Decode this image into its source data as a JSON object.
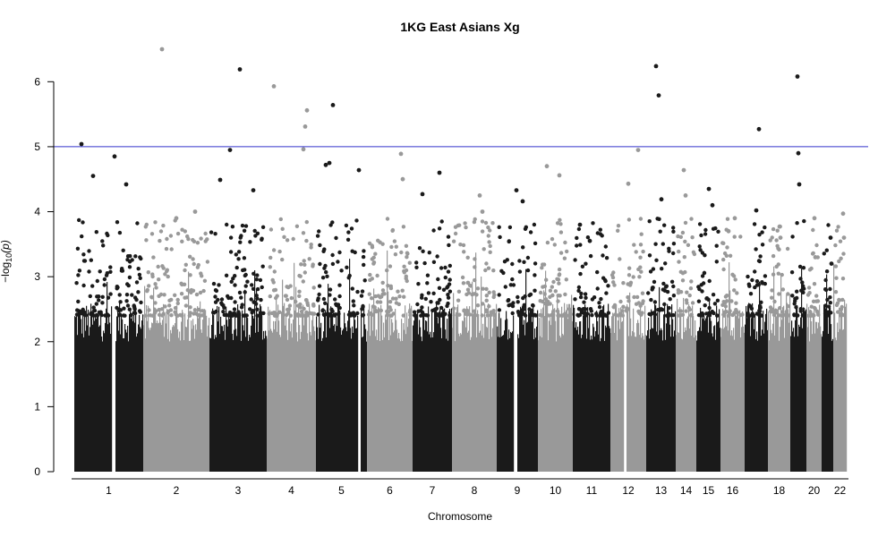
{
  "chart_data": {
    "type": "scatter",
    "subtype": "manhattan",
    "title": "1KG East Asians Xg",
    "xlabel": "Chromosome",
    "ylabel": "−log10(p)",
    "ylabel_main": "−log",
    "ylabel_sub": "10",
    "ylabel_tail": "(p)",
    "ylim": [
      0,
      6.5
    ],
    "yticks": [
      0,
      1,
      2,
      3,
      4,
      5,
      6
    ],
    "threshold": 5,
    "colors": {
      "odd": "#1a1a1a",
      "even": "#999999",
      "threshold": "#3333cc"
    },
    "grid": false,
    "legend": "none",
    "chromosomes": [
      {
        "name": "1",
        "label": "1",
        "top_peaks": [
          5.04,
          4.85,
          4.55,
          4.42
        ]
      },
      {
        "name": "2",
        "label": "2",
        "top_peaks": [
          6.5,
          4.0,
          3.9
        ]
      },
      {
        "name": "3",
        "label": "3",
        "top_peaks": [
          6.19,
          4.95,
          4.49,
          4.33
        ]
      },
      {
        "name": "4",
        "label": "4",
        "top_peaks": [
          5.93,
          5.56,
          5.31,
          4.96
        ]
      },
      {
        "name": "5",
        "label": "5",
        "top_peaks": [
          5.64,
          4.75,
          4.72,
          4.64
        ]
      },
      {
        "name": "6",
        "label": "6",
        "top_peaks": [
          4.89,
          4.5
        ]
      },
      {
        "name": "7",
        "label": "7",
        "top_peaks": [
          4.6,
          4.27
        ]
      },
      {
        "name": "8",
        "label": "8",
        "top_peaks": [
          4.25,
          4.0
        ]
      },
      {
        "name": "9",
        "label": "9",
        "top_peaks": [
          4.33,
          4.16
        ]
      },
      {
        "name": "10",
        "label": "10",
        "top_peaks": [
          4.7,
          4.56
        ]
      },
      {
        "name": "11",
        "label": "11",
        "top_peaks": [
          3.8,
          3.55
        ]
      },
      {
        "name": "12",
        "label": "12",
        "top_peaks": [
          4.95,
          4.43
        ]
      },
      {
        "name": "13",
        "label": "13",
        "top_peaks": [
          6.24,
          5.79,
          4.19
        ]
      },
      {
        "name": "14",
        "label": "14",
        "top_peaks": [
          4.64,
          4.25
        ]
      },
      {
        "name": "15",
        "label": "15",
        "top_peaks": [
          4.35,
          4.1
        ]
      },
      {
        "name": "16",
        "label": "16",
        "top_peaks": [
          3.9,
          3.7
        ]
      },
      {
        "name": "17",
        "label": "",
        "top_peaks": [
          5.27,
          4.02
        ]
      },
      {
        "name": "18",
        "label": "18",
        "top_peaks": [
          3.77,
          3.6
        ]
      },
      {
        "name": "19",
        "label": "",
        "top_peaks": [
          6.08,
          4.9,
          4.42
        ]
      },
      {
        "name": "20",
        "label": "20",
        "top_peaks": [
          3.9,
          3.3
        ]
      },
      {
        "name": "21",
        "label": "",
        "top_peaks": [
          3.6,
          3.2
        ]
      },
      {
        "name": "22",
        "label": "22",
        "top_peaks": [
          3.97,
          3.6
        ]
      }
    ]
  }
}
